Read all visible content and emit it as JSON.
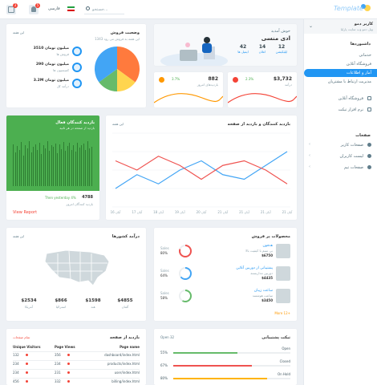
{
  "topbar": {
    "logo_text": "Template",
    "search_placeholder": "جستجو...",
    "language": "فارسی",
    "badge_messages": "3",
    "badge_notifications": "5"
  },
  "user": {
    "name": "کاربر دمو",
    "subtitle": "ویل دمو وب سایت پارلیا"
  },
  "sidebar": {
    "section_dashboards": "داشبوردها",
    "items_top": [
      {
        "label": "خدماتی"
      },
      {
        "label": "فروشگاه آنلاین"
      },
      {
        "label": "آمار و اطلاعات",
        "active": true
      },
      {
        "label": "مدیریت ارتباط با مشتریان"
      }
    ],
    "items_mid": [
      {
        "label": "فروشگاه آنلاین",
        "icon": "cart-icon"
      },
      {
        "label": "نرم افزار تیکت",
        "icon": "ticket-icon"
      }
    ],
    "section_pages": "صفحات",
    "items_pages": [
      {
        "label": "صفحات کاربر",
        "icon": "user-icon"
      },
      {
        "label": "لیست کاربران",
        "icon": "list-icon"
      },
      {
        "label": "صفحات تیم",
        "icon": "team-icon"
      }
    ]
  },
  "welcome": {
    "hello": "خوش آمدید",
    "name": "ادی منسی",
    "stats": [
      {
        "value": "42",
        "label": "ایمیل ها"
      },
      {
        "value": "14",
        "label": "اعلان"
      },
      {
        "value": "12",
        "label": "اپلیکیشن"
      }
    ]
  },
  "sales_status": {
    "title": "وضعیت فروش",
    "period": "این هفته",
    "subtitle": "1343 این هفته به فروش می رود",
    "rows": [
      {
        "value": "3510 میلیون تومان",
        "label": "فروش ها"
      },
      {
        "value": "290 میلیون تومان",
        "label": "کمیسیون ها"
      },
      {
        "value": "3.2M میلیون تومان",
        "label": "درآمد کل"
      }
    ],
    "pie": [
      {
        "value": 35,
        "color": "#ff7a3d"
      },
      {
        "value": 15,
        "color": "#ffd54f"
      },
      {
        "value": 15,
        "color": "#66bb6a"
      },
      {
        "value": 35,
        "color": "#42a5f5"
      }
    ]
  },
  "kpi": [
    {
      "value": "$3,732",
      "label": "درآمد",
      "change": "2.3%",
      "color": "#f44336"
    },
    {
      "value": "882",
      "label": "بازدیدهای امروز",
      "change": "3.7%",
      "color": "#ff9800"
    }
  ],
  "active_visitors": {
    "title": "بازدید کنندگان فعال",
    "subtitle": "بازدید از صفحه در هر ثانیه",
    "yesterday_label": "Then yesterday 4%",
    "value": "4788",
    "caption": "بازدید کنندگان امروز",
    "link": "View Report",
    "bars": [
      0.82,
      0.65,
      0.78,
      0.7,
      0.86,
      0.6,
      0.8,
      0.74,
      0.88,
      0.66,
      0.77,
      0.82,
      0.7,
      0.85,
      0.62,
      0.79,
      0.73,
      0.87,
      0.68,
      0.8,
      0.76,
      0.83,
      0.64,
      0.81,
      0.72,
      0.86,
      0.69,
      0.78,
      0.84,
      0.71,
      0.8,
      0.67,
      0.85,
      0.75,
      0.79,
      0.83,
      0.7,
      0.88,
      0.73,
      0.77
    ]
  },
  "visitors_chart": {
    "title": "بازدید کنندگان و بازدید از صفحه",
    "period": "این هفته",
    "chart_data": {
      "type": "line",
      "categories": [
        "21 آبان",
        "21 آبان",
        "21 آبان",
        "21 آبان",
        "20 آبان",
        "19 آبان",
        "18 آبان",
        "17 آبان",
        "16 آبان"
      ],
      "series": [
        {
          "values": [
            60,
            45,
            30,
            35,
            50,
            40,
            25,
            35,
            20
          ],
          "color": "#42a5f5"
        },
        {
          "values": [
            25,
            40,
            50,
            45,
            30,
            45,
            55,
            40,
            50
          ],
          "color": "#ef5350"
        }
      ],
      "ylim": [
        0,
        80
      ]
    }
  },
  "top_products": {
    "title": "محصولات پر فروش",
    "items": [
      {
        "name": "هدفون",
        "desc": "بی سیم با کیفیت بالا",
        "price": "$6750",
        "sales": "Sales",
        "pct": "80%",
        "color": "#ef5350"
      },
      {
        "name": "پشتیبانی از دوربین آنلاین",
        "desc": "دوربین مداربسته",
        "price": "$4435",
        "sales": "Sales",
        "pct": "64%",
        "color": "#42a5f5"
      },
      {
        "name": "ساعت زیبان",
        "desc": "ساعت هوشمند",
        "price": "$3450",
        "sales": "Sales",
        "pct": "58%",
        "color": "#66bb6a"
      }
    ],
    "more": "More 12+"
  },
  "countries": {
    "title": "درآمد کشورها",
    "period": "این هفته",
    "stats": [
      {
        "value": "$4855",
        "label": "آلمان"
      },
      {
        "value": "$1598",
        "label": "هند"
      },
      {
        "value": "$866",
        "label": "استرالیا"
      },
      {
        "value": "$2534",
        "label": "آمریکا"
      }
    ]
  },
  "page_visits": {
    "title": "بازدید از صفحه",
    "badge": "تمام صفحات",
    "headers": [
      "Unique Visitors",
      "Page Views",
      "Page name"
    ],
    "rows": [
      {
        "unique": "132",
        "views": "356",
        "page": "dashboard/index.html"
      },
      {
        "unique": "234",
        "views": "234",
        "page": "products/index.html"
      },
      {
        "unique": "234",
        "views": "231",
        "page": "user/index.html"
      },
      {
        "unique": "456",
        "views": "332",
        "page": "billing/index.html"
      }
    ]
  },
  "support": {
    "title": "تیکت پشتیبانی",
    "open_badge": "Open 32",
    "items": [
      {
        "label": "Open",
        "pct": "55%",
        "value": 0.55,
        "color": "#66bb6a"
      },
      {
        "label": "Closed",
        "pct": "67%",
        "value": 0.67,
        "color": "#ef5350"
      },
      {
        "label": "On Hold",
        "pct": "80%",
        "value": 0.8,
        "color": "#ffb300"
      }
    ]
  }
}
